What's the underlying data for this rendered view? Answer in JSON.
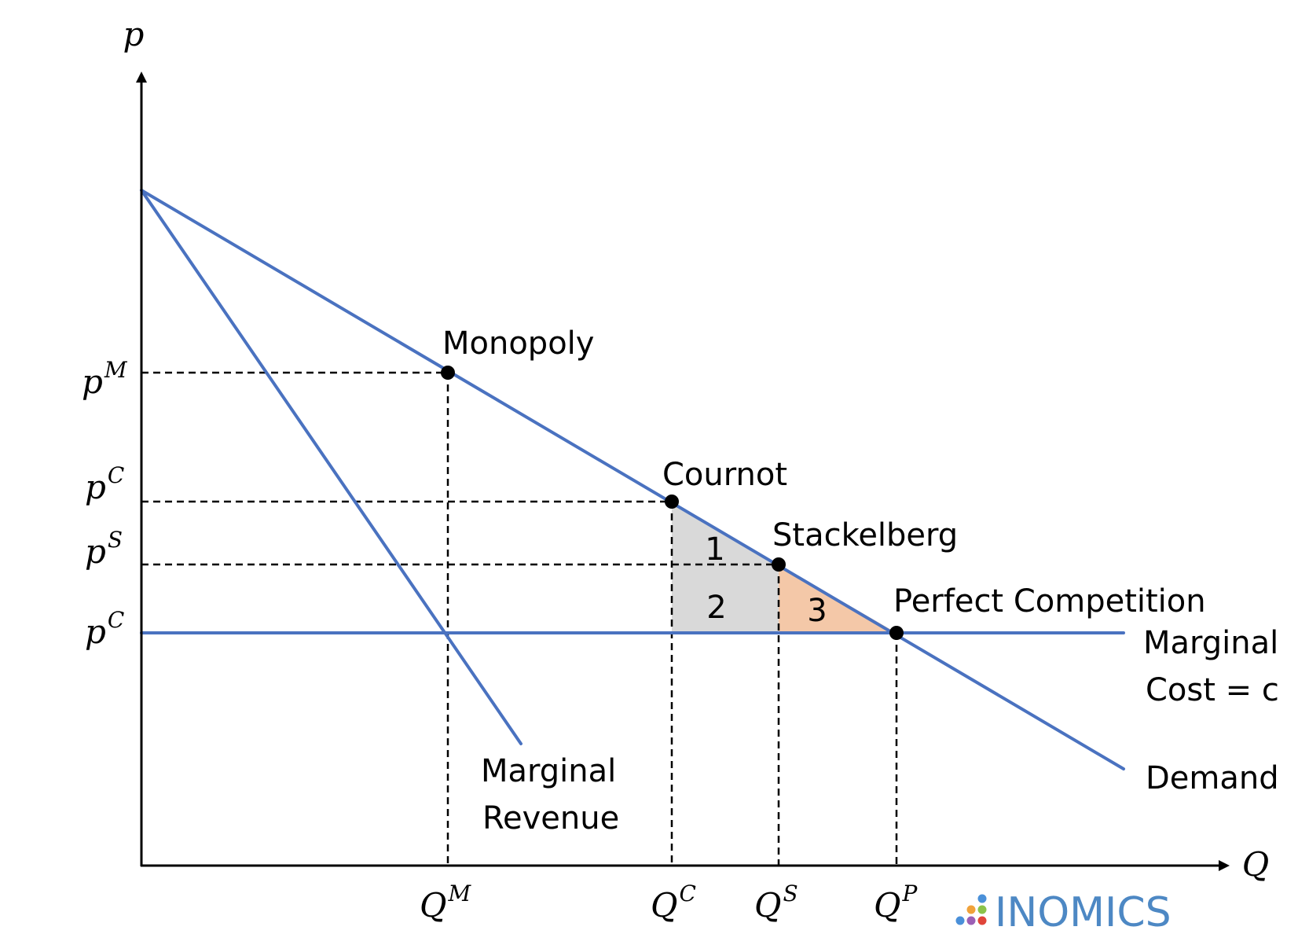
{
  "chart_data": {
    "type": "diagram",
    "axes": {
      "y_label": "p",
      "x_label": "Q"
    },
    "y_tick_labels": [
      {
        "base": "p",
        "sup": "M",
        "level": "pM"
      },
      {
        "base": "p",
        "sup": "C",
        "level": "pC"
      },
      {
        "base": "p",
        "sup": "S",
        "level": "pS"
      },
      {
        "base": "p",
        "sup": "C",
        "level": "c"
      }
    ],
    "x_tick_labels": [
      {
        "base": "Q",
        "sup": "M",
        "level": "QM"
      },
      {
        "base": "Q",
        "sup": "C",
        "level": "QC"
      },
      {
        "base": "Q",
        "sup": "S",
        "level": "QS"
      },
      {
        "base": "Q",
        "sup": "P",
        "level": "QP"
      }
    ],
    "curves": {
      "demand": "Demand",
      "marginal_revenue": [
        "Marginal",
        "Revenue"
      ],
      "marginal_cost": [
        "Marginal",
        "Cost = c"
      ]
    },
    "points": {
      "monopoly": "Monopoly",
      "cournot": "Cournot",
      "stackelberg": "Stackelberg",
      "perfect_competition": "Perfect Competition"
    },
    "regions": [
      "1",
      "2",
      "3"
    ],
    "colors": {
      "curve": "#4a72c0",
      "grey_region": "#d9d9d9",
      "orange_region": "#f4c8a8"
    }
  },
  "brand": {
    "name": "INOMICS",
    "color": "#4d88c4"
  }
}
